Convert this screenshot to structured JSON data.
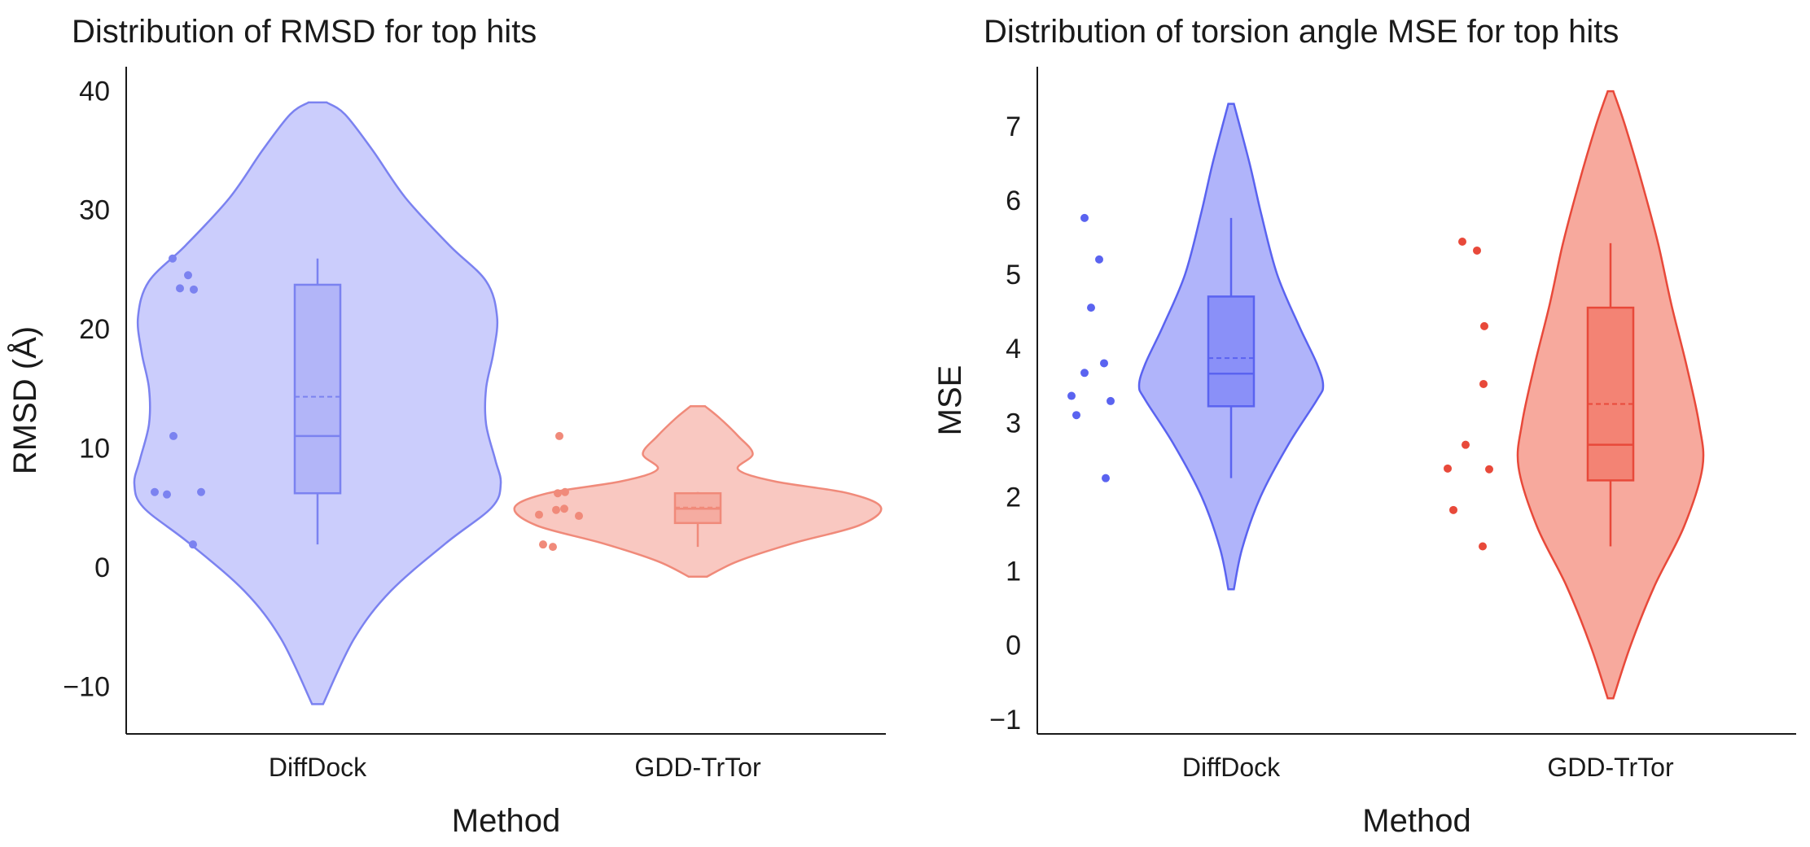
{
  "chart_data": [
    {
      "type": "violin",
      "title": "Distribution of RMSD for top hits",
      "xlabel": "Method",
      "ylabel": "RMSD (Å)",
      "ylim": [
        -14,
        42
      ],
      "yticks": [
        -10,
        0,
        10,
        20,
        30,
        40
      ],
      "categories": [
        "DiffDock",
        "GDD-TrTor"
      ],
      "series": [
        {
          "name": "DiffDock",
          "color": "#7b82f0",
          "fill": "#cbcdfc",
          "box_fill": "#b2b5f8",
          "violin_range": [
            -11.5,
            39
          ],
          "violin_shape": [
            [
              -11.5,
              0.03
            ],
            [
              -6,
              0.2
            ],
            [
              -2,
              0.4
            ],
            [
              2,
              0.7
            ],
            [
              5,
              0.95
            ],
            [
              7,
              1.0
            ],
            [
              9,
              0.97
            ],
            [
              12,
              0.92
            ],
            [
              15,
              0.92
            ],
            [
              18,
              0.96
            ],
            [
              21,
              0.98
            ],
            [
              24,
              0.92
            ],
            [
              27,
              0.72
            ],
            [
              31,
              0.48
            ],
            [
              35,
              0.3
            ],
            [
              38,
              0.15
            ],
            [
              39,
              0.05
            ]
          ],
          "box": {
            "q1": 6.2,
            "median": 11.0,
            "q3": 23.7,
            "whisker_low": 1.9,
            "whisker_high": 25.9,
            "mean": 14.3
          },
          "points": [
            6.3,
            6.1,
            1.9,
            6.3,
            25.9,
            11.0,
            23.4,
            24.5,
            23.3
          ]
        },
        {
          "name": "GDD-TrTor",
          "color": "#f08a7a",
          "fill": "#f9c8c1",
          "box_fill": "#f5aca1",
          "violin_range": [
            -0.8,
            13.5
          ],
          "violin_shape": [
            [
              -0.8,
              0.05
            ],
            [
              0.5,
              0.22
            ],
            [
              2,
              0.52
            ],
            [
              3.5,
              0.88
            ],
            [
              5,
              1.0
            ],
            [
              6.2,
              0.82
            ],
            [
              7.2,
              0.42
            ],
            [
              8.2,
              0.22
            ],
            [
              9.5,
              0.3
            ],
            [
              11,
              0.22
            ],
            [
              12.5,
              0.12
            ],
            [
              13.5,
              0.04
            ]
          ],
          "box": {
            "q1": 3.7,
            "median": 4.9,
            "q3": 6.2,
            "whisker_low": 1.7,
            "whisker_high": 6.3,
            "mean": 5.0
          },
          "points": [
            4.4,
            1.9,
            4.8,
            6.2,
            4.9,
            11.0,
            6.3,
            4.3,
            1.7
          ]
        }
      ]
    },
    {
      "type": "violin",
      "title": "Distribution of torsion angle MSE for top hits",
      "xlabel": "Method",
      "ylabel": "MSE",
      "ylim": [
        -1.2,
        7.8
      ],
      "yticks": [
        -1,
        0,
        1,
        2,
        3,
        4,
        5,
        6,
        7
      ],
      "categories": [
        "DiffDock",
        "GDD-TrTor"
      ],
      "series": [
        {
          "name": "DiffDock",
          "color": "#5a63f0",
          "fill": "#b0b4fa",
          "box_fill": "#8a90f8",
          "violin_range": [
            0.75,
            7.3
          ],
          "violin_shape": [
            [
              0.75,
              0.03
            ],
            [
              1.3,
              0.12
            ],
            [
              2.0,
              0.32
            ],
            [
              2.7,
              0.62
            ],
            [
              3.3,
              0.93
            ],
            [
              3.5,
              1.0
            ],
            [
              3.8,
              0.93
            ],
            [
              4.3,
              0.74
            ],
            [
              5.0,
              0.5
            ],
            [
              5.8,
              0.33
            ],
            [
              6.5,
              0.2
            ],
            [
              7.3,
              0.03
            ]
          ],
          "box": {
            "q1": 3.22,
            "median": 3.66,
            "q3": 4.7,
            "whisker_low": 2.25,
            "whisker_high": 5.76,
            "mean": 3.87
          },
          "points": [
            3.36,
            3.1,
            3.67,
            4.55,
            2.25,
            5.76,
            5.2,
            3.8,
            3.29
          ]
        },
        {
          "name": "GDD-TrTor",
          "color": "#e8493a",
          "fill": "#f7a99d",
          "box_fill": "#f38374",
          "violin_range": [
            -0.72,
            7.47
          ],
          "violin_shape": [
            [
              -0.72,
              0.03
            ],
            [
              0,
              0.22
            ],
            [
              0.8,
              0.48
            ],
            [
              1.6,
              0.8
            ],
            [
              2.4,
              1.0
            ],
            [
              3.0,
              0.96
            ],
            [
              3.8,
              0.82
            ],
            [
              4.6,
              0.66
            ],
            [
              5.4,
              0.52
            ],
            [
              6.2,
              0.35
            ],
            [
              7.0,
              0.16
            ],
            [
              7.47,
              0.03
            ]
          ],
          "box": {
            "q1": 2.22,
            "median": 2.7,
            "q3": 4.55,
            "whisker_low": 1.33,
            "whisker_high": 5.42,
            "mean": 3.25
          },
          "points": [
            2.38,
            1.82,
            2.7,
            5.44,
            4.3,
            1.33,
            5.32,
            3.52,
            2.37
          ]
        }
      ]
    }
  ]
}
